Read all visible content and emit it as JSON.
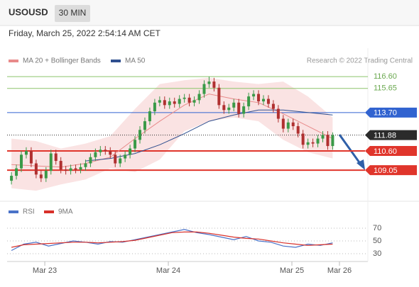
{
  "header": {
    "symbol": "USOUSD",
    "interval": "30 MIN",
    "timestamp": "Friday, March 25, 2022 2:54:14 AM CET"
  },
  "chart_data": [
    {
      "type": "candlestick",
      "legend": [
        {
          "name": "MA 20 + Bollinger Bands",
          "color": "#e88a8a"
        },
        {
          "name": "MA 50",
          "color": "#2f4f8f"
        }
      ],
      "credit": "Research © 2022 Trading Central",
      "xlim": [
        -0.282,
        2.615
      ],
      "ylim": [
        106.66,
        118.89
      ],
      "xticks": [
        {
          "value": 0,
          "label": "Mar 23"
        },
        {
          "value": 1,
          "label": "Mar 24"
        },
        {
          "value": 2,
          "label": "Mar 25"
        },
        {
          "value": 2.385,
          "label": "Mar 26"
        }
      ],
      "up_color": "#3a9a48",
      "down_color": "#b03030",
      "x": [
        -0.27,
        -0.23,
        -0.19,
        -0.15,
        -0.11,
        -0.07,
        -0.03,
        0.01,
        0.05,
        0.09,
        0.13,
        0.17,
        0.21,
        0.25,
        0.29,
        0.33,
        0.37,
        0.41,
        0.45,
        0.49,
        0.53,
        0.57,
        0.61,
        0.65,
        0.69,
        0.73,
        0.77,
        0.81,
        0.85,
        0.89,
        0.93,
        0.97,
        1.01,
        1.05,
        1.09,
        1.13,
        1.17,
        1.21,
        1.25,
        1.29,
        1.33,
        1.37,
        1.41,
        1.45,
        1.49,
        1.53,
        1.57,
        1.61,
        1.65,
        1.69,
        1.73,
        1.77,
        1.81,
        1.85,
        1.89,
        1.93,
        1.97,
        2.01,
        2.05,
        2.09,
        2.13,
        2.17,
        2.21,
        2.25,
        2.29,
        2.33
      ],
      "open": [
        108.2,
        108.6,
        109.2,
        110.3,
        110.6,
        109.6,
        108.7,
        108.4,
        109.0,
        110.4,
        109.8,
        109.1,
        109.0,
        109.2,
        109.1,
        109.3,
        109.6,
        110.1,
        110.5,
        110.7,
        110.6,
        110.3,
        109.6,
        110.0,
        110.3,
        110.8,
        111.5,
        112.3,
        113.0,
        113.8,
        114.5,
        114.7,
        114.3,
        114.6,
        114.4,
        114.8,
        114.9,
        114.5,
        114.7,
        115.2,
        116.0,
        116.2,
        115.7,
        114.3,
        113.9,
        114.1,
        114.5,
        113.6,
        114.2,
        115.0,
        115.2,
        114.6,
        114.8,
        114.4,
        114.0,
        113.2,
        112.4,
        112.9,
        112.6,
        112.0,
        111.1,
        111.3,
        111.2,
        111.6,
        111.9,
        111.0
      ],
      "high": [
        108.9,
        109.5,
        110.6,
        110.9,
        110.9,
        109.9,
        109.0,
        109.3,
        110.7,
        110.7,
        110.1,
        109.4,
        109.5,
        109.5,
        109.6,
        109.9,
        110.4,
        110.8,
        111.0,
        111.0,
        110.9,
        110.6,
        110.3,
        110.6,
        111.1,
        111.8,
        112.6,
        113.3,
        114.1,
        114.8,
        115.0,
        115.0,
        114.9,
        114.9,
        115.1,
        115.2,
        115.2,
        115.0,
        115.5,
        116.3,
        116.6,
        116.5,
        116.0,
        114.6,
        114.4,
        114.8,
        114.8,
        114.5,
        115.3,
        115.5,
        115.5,
        115.1,
        115.1,
        114.7,
        114.3,
        113.5,
        113.2,
        113.2,
        112.9,
        112.3,
        111.6,
        111.6,
        111.9,
        112.2,
        112.2,
        112.1
      ],
      "low": [
        107.9,
        108.3,
        108.9,
        110.0,
        109.3,
        108.4,
        108.1,
        108.1,
        108.7,
        109.5,
        108.8,
        108.7,
        108.7,
        108.8,
        108.8,
        109.0,
        109.3,
        109.8,
        110.2,
        110.3,
        110.0,
        109.3,
        109.3,
        109.7,
        110.0,
        110.5,
        111.2,
        112.0,
        112.7,
        113.5,
        114.2,
        114.0,
        114.0,
        114.1,
        114.1,
        114.5,
        114.2,
        114.2,
        114.4,
        114.9,
        115.7,
        115.4,
        114.0,
        113.6,
        113.6,
        113.8,
        113.3,
        113.3,
        113.9,
        114.7,
        114.3,
        114.3,
        114.1,
        113.7,
        112.9,
        112.1,
        112.1,
        112.3,
        111.7,
        110.8,
        110.8,
        110.9,
        110.9,
        111.3,
        110.7,
        110.7
      ],
      "close": [
        108.6,
        109.2,
        110.3,
        110.6,
        109.6,
        108.7,
        108.4,
        109.0,
        110.4,
        109.8,
        109.1,
        109.0,
        109.2,
        109.1,
        109.3,
        109.6,
        110.1,
        110.5,
        110.7,
        110.6,
        110.3,
        109.6,
        110.0,
        110.3,
        110.8,
        111.5,
        112.3,
        113.0,
        113.8,
        114.5,
        114.7,
        114.3,
        114.6,
        114.4,
        114.8,
        114.9,
        114.5,
        114.7,
        115.2,
        116.0,
        116.2,
        115.7,
        114.3,
        113.9,
        114.1,
        114.5,
        113.6,
        114.2,
        115.0,
        115.2,
        114.6,
        114.8,
        114.4,
        114.0,
        113.2,
        112.4,
        112.9,
        112.6,
        112.0,
        111.1,
        111.3,
        111.2,
        111.6,
        111.9,
        111.0,
        111.88
      ],
      "overlay_x": [
        -0.27,
        -0.07,
        0.13,
        0.33,
        0.53,
        0.73,
        0.93,
        1.13,
        1.33,
        1.53,
        1.73,
        1.93,
        2.13,
        2.33
      ],
      "band_upper": [
        111.6,
        111.4,
        110.8,
        111.2,
        111.8,
        114.0,
        116.0,
        116.3,
        116.5,
        116.2,
        116.0,
        116.2,
        115.0,
        113.3
      ],
      "band_lower": [
        107.6,
        107.4,
        107.9,
        108.3,
        109.2,
        108.9,
        109.9,
        112.2,
        113.0,
        113.3,
        113.0,
        111.5,
        110.5,
        110.0
      ],
      "ma20": [
        109.5,
        109.4,
        109.3,
        109.6,
        110.1,
        111.6,
        113.0,
        114.3,
        115.2,
        114.8,
        114.5,
        113.6,
        112.6,
        111.6
      ],
      "ma50": [
        null,
        null,
        null,
        109.8,
        110.0,
        110.4,
        111.1,
        112.0,
        113.0,
        113.5,
        113.9,
        113.9,
        113.7,
        113.5
      ],
      "levels": [
        {
          "value": 116.6,
          "label": "116.60",
          "color": "#8bc46a",
          "boxed": false
        },
        {
          "value": 115.65,
          "label": "115.65",
          "color": "#8bc46a",
          "boxed": false
        },
        {
          "value": 113.7,
          "label": "113.70",
          "color": "#3163d0",
          "boxed": true
        },
        {
          "value": 111.88,
          "label": "111.88",
          "color": "#2b2b2b",
          "boxed": true
        },
        {
          "value": 110.6,
          "label": "110.60",
          "color": "#e0352b",
          "boxed": true
        },
        {
          "value": 109.05,
          "label": "109.05",
          "color": "#e0352b",
          "boxed": true
        }
      ]
    },
    {
      "type": "line",
      "xlim": [
        -0.282,
        2.615
      ],
      "ylim": [
        18.9,
        105.6
      ],
      "yticks": [
        70,
        50,
        30
      ],
      "x": [
        -0.27,
        -0.17,
        -0.07,
        0.03,
        0.13,
        0.23,
        0.33,
        0.43,
        0.53,
        0.63,
        0.73,
        0.83,
        0.93,
        1.03,
        1.13,
        1.23,
        1.33,
        1.43,
        1.53,
        1.63,
        1.73,
        1.83,
        1.93,
        2.03,
        2.13,
        2.23,
        2.33
      ],
      "series": [
        {
          "name": "RSI",
          "color": "#4a72c8",
          "values": [
            35,
            45,
            48,
            42,
            46,
            50,
            48,
            45,
            49,
            48,
            52,
            56,
            60,
            64,
            68,
            63,
            60,
            56,
            52,
            57,
            50,
            48,
            42,
            40,
            45,
            43,
            47
          ]
        },
        {
          "name": "9MA",
          "color": "#d8302a",
          "values": [
            40,
            44,
            45,
            46,
            47,
            48,
            48,
            47,
            48,
            49,
            51,
            55,
            59,
            63,
            64,
            64,
            62,
            59,
            56,
            54,
            53,
            50,
            47,
            45,
            43,
            44,
            45
          ]
        }
      ]
    }
  ]
}
